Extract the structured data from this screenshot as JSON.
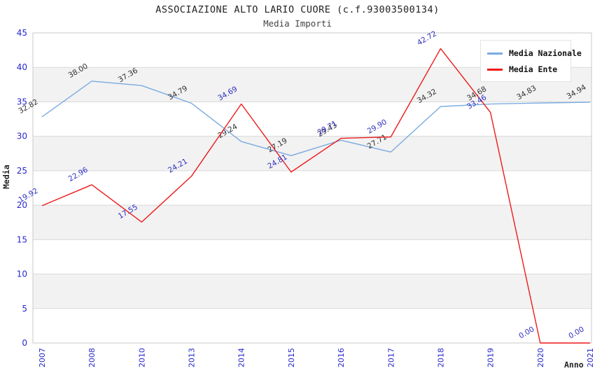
{
  "header": {
    "title": "ASSOCIAZIONE ALTO LARIO CUORE (c.f.93003500134)",
    "subtitle": "Media Importi"
  },
  "legend": {
    "position": "top-right",
    "items": [
      {
        "label": "Media Nazionale",
        "color": "#7aabdf"
      },
      {
        "label": "Media Ente",
        "color": "#ee1a1a"
      }
    ]
  },
  "axes": {
    "y_label": "Media",
    "x_label": "Anno",
    "y_ticks": [
      0,
      5,
      10,
      15,
      20,
      25,
      30,
      35,
      40,
      45
    ],
    "tick_color": "#2828cc"
  },
  "colors": {
    "band_gray": "#f2f2f2",
    "grid_line": "#d9d9d9",
    "plot_border": "#c8c8c8",
    "nazionale_line": "#7aabdf",
    "ente_line": "#ee1a1a",
    "nazionale_label": "#303030",
    "ente_label": "#2d2dc0"
  },
  "chart_data": {
    "type": "line",
    "title": "ASSOCIAZIONE ALTO LARIO CUORE (c.f.93003500134)",
    "subtitle": "Media Importi",
    "xlabel": "Anno",
    "ylabel": "Media",
    "ylim": [
      0,
      45
    ],
    "grid": "horizontal",
    "bands": "alternating-gray",
    "legend_position": "top-right",
    "categories": [
      "2007",
      "2008",
      "2010",
      "2013",
      "2014",
      "2015",
      "2016",
      "2017",
      "2018",
      "2019",
      "2020",
      "2021"
    ],
    "series": [
      {
        "name": "Media Nazionale",
        "color": "#7aabdf",
        "label_color": "#303030",
        "values": [
          32.82,
          38.0,
          37.36,
          34.79,
          29.24,
          27.19,
          29.43,
          27.71,
          34.32,
          34.68,
          34.83,
          34.94
        ]
      },
      {
        "name": "Media Ente",
        "color": "#ee1a1a",
        "label_color": "#2d2dc0",
        "values": [
          19.92,
          22.96,
          17.55,
          24.21,
          34.69,
          24.81,
          29.71,
          29.9,
          42.72,
          33.46,
          0.0,
          0.0
        ]
      }
    ]
  }
}
